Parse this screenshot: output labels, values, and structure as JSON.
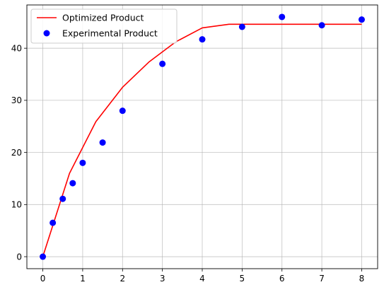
{
  "chart_data": {
    "type": "line+scatter",
    "title": "",
    "xlabel": "",
    "ylabel": "",
    "xlim": [
      -0.4,
      8.4
    ],
    "ylim": [
      -2.3,
      48.3
    ],
    "xticks": [
      0,
      1,
      2,
      3,
      4,
      5,
      6,
      7,
      8
    ],
    "yticks": [
      0,
      10,
      20,
      30,
      40
    ],
    "grid": true,
    "legend_position": "top-left",
    "series": [
      {
        "name": "Optimized Product",
        "kind": "line",
        "color": "#ff0000",
        "x": [
          0,
          0.67,
          1.33,
          2.0,
          2.67,
          3.33,
          4.0,
          4.67,
          5.33,
          6.0,
          6.67,
          7.33,
          8.0
        ],
        "y": [
          0,
          16.0,
          25.9,
          32.5,
          37.4,
          41.2,
          43.9,
          44.6,
          44.6,
          44.6,
          44.6,
          44.6,
          44.6
        ]
      },
      {
        "name": "Experimental Product",
        "kind": "scatter",
        "color": "#0000ff",
        "x": [
          0,
          0.25,
          0.5,
          0.75,
          1.0,
          1.5,
          2.0,
          3.0,
          4.0,
          5.0,
          6.0,
          7.0,
          8.0
        ],
        "y": [
          0,
          6.5,
          11.1,
          14.1,
          18.0,
          21.9,
          28.0,
          37.0,
          41.7,
          44.1,
          46.0,
          44.4,
          45.5
        ]
      }
    ]
  }
}
